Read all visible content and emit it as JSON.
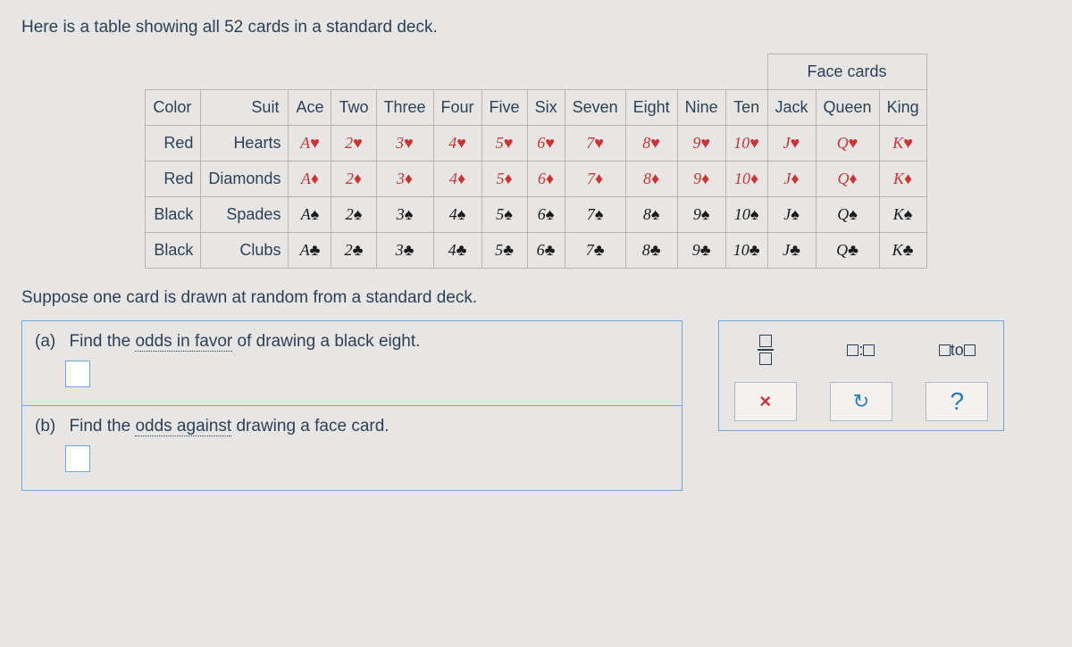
{
  "intro": "Here is a table showing all 52 cards in a standard deck.",
  "headers": {
    "color": "Color",
    "suit": "Suit",
    "ranks": [
      "Ace",
      "Two",
      "Three",
      "Four",
      "Five",
      "Six",
      "Seven",
      "Eight",
      "Nine",
      "Ten",
      "Jack",
      "Queen",
      "King"
    ],
    "face_cards": "Face cards"
  },
  "rows": [
    {
      "color": "Red",
      "suit": "Hearts",
      "sym": "♥",
      "css": "red-card"
    },
    {
      "color": "Red",
      "suit": "Diamonds",
      "sym": "♦",
      "css": "red-card"
    },
    {
      "color": "Black",
      "suit": "Spades",
      "sym": "♠",
      "css": "black-card"
    },
    {
      "color": "Black",
      "suit": "Clubs",
      "sym": "♣",
      "css": "black-card"
    }
  ],
  "rank_short": [
    "A",
    "2",
    "3",
    "4",
    "5",
    "6",
    "7",
    "8",
    "9",
    "10",
    "J",
    "Q",
    "K"
  ],
  "below": "Suppose one card is drawn at random from a standard deck.",
  "qa": {
    "a_label": "(a)",
    "a_pre": "Find the ",
    "a_u": "odds in favor",
    "a_post": " of drawing a black eight.",
    "b_label": "(b)",
    "b_pre": "Find the ",
    "b_u": "odds against",
    "b_post": " drawing a face card."
  },
  "tools": {
    "ratio_sep": ":",
    "to_word": " to ",
    "close": "×",
    "reset": "↻",
    "help": "?"
  }
}
